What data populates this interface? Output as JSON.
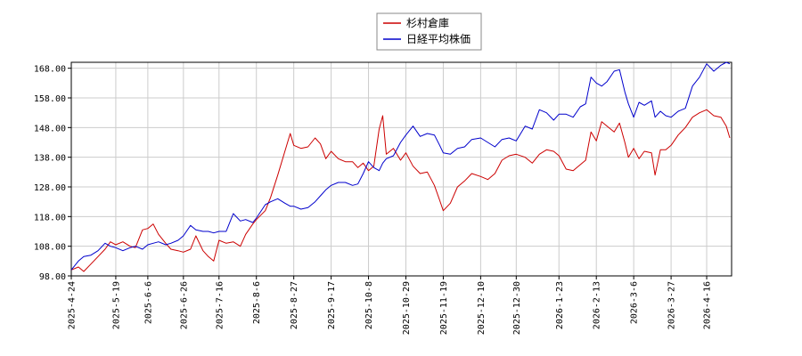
{
  "chart_data": {
    "type": "line",
    "title": "",
    "xlabel": "",
    "ylabel": "",
    "ylim": [
      98,
      170
    ],
    "grid": true,
    "legend_position": "top-center",
    "y_ticks": [
      98,
      108,
      118,
      128,
      138,
      148,
      158,
      168
    ],
    "y_tick_labels": [
      "98.00",
      "108.00",
      "118.00",
      "128.00",
      "138.00",
      "148.00",
      "158.00",
      "168.00"
    ],
    "x_ticks": [
      "2025-4-24",
      "2025-5-19",
      "2025-6-6",
      "2025-6-26",
      "2025-7-16",
      "2025-8-6",
      "2025-8-27",
      "2025-9-17",
      "2025-10-8",
      "2025-10-29",
      "2025-11-19",
      "2025-12-10",
      "2025-12-30",
      "2026-1-23",
      "2026-2-13",
      "2026-3-6",
      "2026-3-27",
      "2026-4-16"
    ],
    "x_end": "2026-4-30",
    "series": [
      {
        "name": "杉村倉庫",
        "color": "#cc0000",
        "points": [
          [
            "2025-4-24",
            100.0
          ],
          [
            "2025-4-28",
            101.0
          ],
          [
            "2025-5-1",
            99.5
          ],
          [
            "2025-5-5",
            102.0
          ],
          [
            "2025-5-9",
            104.5
          ],
          [
            "2025-5-13",
            107.0
          ],
          [
            "2025-5-16",
            109.5
          ],
          [
            "2025-5-19",
            108.5
          ],
          [
            "2025-5-23",
            109.5
          ],
          [
            "2025-5-27",
            108.0
          ],
          [
            "2025-5-30",
            107.5
          ],
          [
            "2025-6-3",
            113.5
          ],
          [
            "2025-6-6",
            114.0
          ],
          [
            "2025-6-9",
            115.5
          ],
          [
            "2025-6-12",
            112.0
          ],
          [
            "2025-6-16",
            109.0
          ],
          [
            "2025-6-19",
            107.0
          ],
          [
            "2025-6-23",
            106.5
          ],
          [
            "2025-6-26",
            106.0
          ],
          [
            "2025-6-30",
            107.0
          ],
          [
            "2025-7-3",
            111.5
          ],
          [
            "2025-7-7",
            106.5
          ],
          [
            "2025-7-10",
            104.5
          ],
          [
            "2025-7-13",
            103.0
          ],
          [
            "2025-7-16",
            110.0
          ],
          [
            "2025-7-20",
            109.0
          ],
          [
            "2025-7-24",
            109.5
          ],
          [
            "2025-7-28",
            108.0
          ],
          [
            "2025-7-31",
            112.0
          ],
          [
            "2025-8-4",
            115.5
          ],
          [
            "2025-8-6",
            117.0
          ],
          [
            "2025-8-11",
            120.0
          ],
          [
            "2025-8-14",
            124.5
          ],
          [
            "2025-8-18",
            132.0
          ],
          [
            "2025-8-22",
            140.0
          ],
          [
            "2025-8-25",
            146.0
          ],
          [
            "2025-8-27",
            142.0
          ],
          [
            "2025-8-31",
            141.0
          ],
          [
            "2025-9-4",
            141.5
          ],
          [
            "2025-9-8",
            144.5
          ],
          [
            "2025-9-11",
            142.5
          ],
          [
            "2025-9-14",
            137.5
          ],
          [
            "2025-9-17",
            140.0
          ],
          [
            "2025-9-21",
            137.5
          ],
          [
            "2025-9-25",
            136.5
          ],
          [
            "2025-9-29",
            136.5
          ],
          [
            "2025-10-2",
            134.5
          ],
          [
            "2025-10-5",
            136.0
          ],
          [
            "2025-10-8",
            133.5
          ],
          [
            "2025-10-11",
            135.0
          ],
          [
            "2025-10-14",
            147.5
          ],
          [
            "2025-10-16",
            152.0
          ],
          [
            "2025-10-18",
            139.0
          ],
          [
            "2025-10-22",
            141.0
          ],
          [
            "2025-10-26",
            137.0
          ],
          [
            "2025-10-29",
            139.5
          ],
          [
            "2025-11-2",
            135.0
          ],
          [
            "2025-11-6",
            132.5
          ],
          [
            "2025-11-10",
            133.0
          ],
          [
            "2025-11-14",
            128.5
          ],
          [
            "2025-11-17",
            123.5
          ],
          [
            "2025-11-19",
            120.0
          ],
          [
            "2025-11-23",
            122.5
          ],
          [
            "2025-11-27",
            128.0
          ],
          [
            "2025-12-1",
            130.0
          ],
          [
            "2025-12-5",
            132.5
          ],
          [
            "2025-12-10",
            131.5
          ],
          [
            "2025-12-14",
            130.5
          ],
          [
            "2025-12-18",
            132.5
          ],
          [
            "2025-12-22",
            137.0
          ],
          [
            "2025-12-26",
            138.5
          ],
          [
            "2025-12-30",
            139.0
          ],
          [
            "2026-1-4",
            138.0
          ],
          [
            "2026-1-8",
            136.0
          ],
          [
            "2026-1-12",
            139.0
          ],
          [
            "2026-1-16",
            140.5
          ],
          [
            "2026-1-20",
            140.0
          ],
          [
            "2026-1-23",
            138.5
          ],
          [
            "2026-1-27",
            134.0
          ],
          [
            "2026-1-31",
            133.5
          ],
          [
            "2026-2-4",
            135.5
          ],
          [
            "2026-2-7",
            137.0
          ],
          [
            "2026-2-10",
            146.5
          ],
          [
            "2026-2-13",
            143.5
          ],
          [
            "2026-2-16",
            150.0
          ],
          [
            "2026-2-19",
            148.5
          ],
          [
            "2026-2-23",
            146.5
          ],
          [
            "2026-2-26",
            149.5
          ],
          [
            "2026-3-1",
            143.0
          ],
          [
            "2026-3-3",
            138.0
          ],
          [
            "2026-3-6",
            141.0
          ],
          [
            "2026-3-9",
            137.5
          ],
          [
            "2026-3-12",
            140.0
          ],
          [
            "2026-3-16",
            139.5
          ],
          [
            "2026-3-18",
            132.0
          ],
          [
            "2026-3-21",
            140.5
          ],
          [
            "2026-3-24",
            140.5
          ],
          [
            "2026-3-27",
            142.0
          ],
          [
            "2026-3-31",
            145.5
          ],
          [
            "2026-4-4",
            148.0
          ],
          [
            "2026-4-8",
            151.5
          ],
          [
            "2026-4-12",
            153.0
          ],
          [
            "2026-4-16",
            154.0
          ],
          [
            "2026-4-20",
            152.0
          ],
          [
            "2026-4-24",
            151.5
          ],
          [
            "2026-4-27",
            148.5
          ],
          [
            "2026-4-29",
            144.5
          ]
        ]
      },
      {
        "name": "日経平均株価",
        "color": "#0000cc",
        "points": [
          [
            "2025-4-24",
            100.0
          ],
          [
            "2025-4-28",
            103.0
          ],
          [
            "2025-5-1",
            104.5
          ],
          [
            "2025-5-5",
            105.0
          ],
          [
            "2025-5-9",
            106.5
          ],
          [
            "2025-5-13",
            109.0
          ],
          [
            "2025-5-16",
            108.0
          ],
          [
            "2025-5-19",
            107.5
          ],
          [
            "2025-5-23",
            106.5
          ],
          [
            "2025-5-27",
            107.5
          ],
          [
            "2025-5-30",
            108.0
          ],
          [
            "2025-6-3",
            107.0
          ],
          [
            "2025-6-6",
            108.5
          ],
          [
            "2025-6-9",
            109.0
          ],
          [
            "2025-6-12",
            109.5
          ],
          [
            "2025-6-16",
            108.5
          ],
          [
            "2025-6-19",
            109.0
          ],
          [
            "2025-6-23",
            110.0
          ],
          [
            "2025-6-26",
            111.5
          ],
          [
            "2025-6-30",
            115.0
          ],
          [
            "2025-7-3",
            113.5
          ],
          [
            "2025-7-7",
            113.0
          ],
          [
            "2025-7-10",
            113.0
          ],
          [
            "2025-7-13",
            112.5
          ],
          [
            "2025-7-16",
            113.0
          ],
          [
            "2025-7-20",
            113.0
          ],
          [
            "2025-7-24",
            119.0
          ],
          [
            "2025-7-28",
            116.5
          ],
          [
            "2025-7-31",
            117.0
          ],
          [
            "2025-8-4",
            116.0
          ],
          [
            "2025-8-6",
            117.5
          ],
          [
            "2025-8-11",
            122.0
          ],
          [
            "2025-8-14",
            123.0
          ],
          [
            "2025-8-18",
            124.0
          ],
          [
            "2025-8-22",
            122.5
          ],
          [
            "2025-8-25",
            121.5
          ],
          [
            "2025-8-27",
            121.5
          ],
          [
            "2025-8-31",
            120.5
          ],
          [
            "2025-9-4",
            121.0
          ],
          [
            "2025-9-8",
            123.0
          ],
          [
            "2025-9-11",
            125.0
          ],
          [
            "2025-9-14",
            127.0
          ],
          [
            "2025-9-17",
            128.5
          ],
          [
            "2025-9-21",
            129.5
          ],
          [
            "2025-9-25",
            129.5
          ],
          [
            "2025-9-29",
            128.5
          ],
          [
            "2025-10-2",
            129.0
          ],
          [
            "2025-10-5",
            132.5
          ],
          [
            "2025-10-8",
            136.5
          ],
          [
            "2025-10-11",
            134.5
          ],
          [
            "2025-10-14",
            133.5
          ],
          [
            "2025-10-16",
            136.0
          ],
          [
            "2025-10-18",
            137.5
          ],
          [
            "2025-10-22",
            138.5
          ],
          [
            "2025-10-26",
            143.0
          ],
          [
            "2025-10-29",
            145.5
          ],
          [
            "2025-11-2",
            148.5
          ],
          [
            "2025-11-6",
            145.0
          ],
          [
            "2025-11-10",
            146.0
          ],
          [
            "2025-11-14",
            145.5
          ],
          [
            "2025-11-17",
            142.0
          ],
          [
            "2025-11-19",
            139.5
          ],
          [
            "2025-11-23",
            139.0
          ],
          [
            "2025-11-27",
            141.0
          ],
          [
            "2025-12-1",
            141.5
          ],
          [
            "2025-12-5",
            144.0
          ],
          [
            "2025-12-10",
            144.5
          ],
          [
            "2025-12-14",
            143.0
          ],
          [
            "2025-12-18",
            141.5
          ],
          [
            "2025-12-22",
            144.0
          ],
          [
            "2025-12-26",
            144.5
          ],
          [
            "2025-12-30",
            143.5
          ],
          [
            "2026-1-4",
            148.5
          ],
          [
            "2026-1-8",
            147.5
          ],
          [
            "2026-1-12",
            154.0
          ],
          [
            "2026-1-16",
            153.0
          ],
          [
            "2026-1-20",
            150.5
          ],
          [
            "2026-1-23",
            152.5
          ],
          [
            "2026-1-27",
            152.5
          ],
          [
            "2026-1-31",
            151.5
          ],
          [
            "2026-2-4",
            155.0
          ],
          [
            "2026-2-7",
            156.0
          ],
          [
            "2026-2-10",
            165.0
          ],
          [
            "2026-2-13",
            163.0
          ],
          [
            "2026-2-16",
            162.0
          ],
          [
            "2026-2-19",
            163.5
          ],
          [
            "2026-2-23",
            167.0
          ],
          [
            "2026-2-26",
            167.5
          ],
          [
            "2026-3-1",
            160.0
          ],
          [
            "2026-3-3",
            156.0
          ],
          [
            "2026-3-6",
            151.5
          ],
          [
            "2026-3-9",
            156.5
          ],
          [
            "2026-3-12",
            155.5
          ],
          [
            "2026-3-16",
            157.0
          ],
          [
            "2026-3-18",
            151.5
          ],
          [
            "2026-3-21",
            153.5
          ],
          [
            "2026-3-24",
            152.0
          ],
          [
            "2026-3-27",
            151.5
          ],
          [
            "2026-3-31",
            153.5
          ],
          [
            "2026-4-4",
            154.5
          ],
          [
            "2026-4-8",
            162.0
          ],
          [
            "2026-4-12",
            165.0
          ],
          [
            "2026-4-16",
            169.5
          ],
          [
            "2026-4-20",
            167.0
          ],
          [
            "2026-4-24",
            169.0
          ],
          [
            "2026-4-27",
            170.0
          ],
          [
            "2026-4-29",
            169.5
          ]
        ]
      }
    ]
  }
}
